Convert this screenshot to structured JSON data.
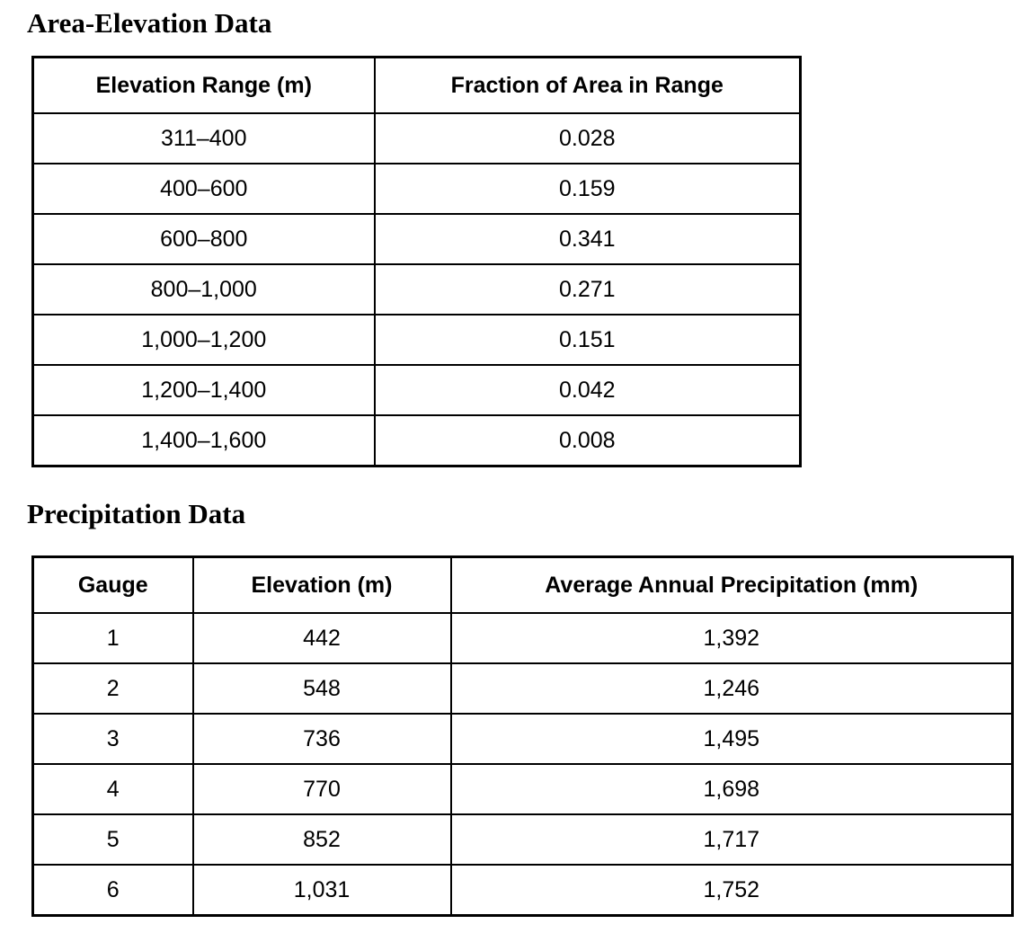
{
  "area_elevation": {
    "title": "Area-Elevation Data",
    "table": {
      "headers": [
        "Elevation Range (m)",
        "Fraction of Area in Range"
      ],
      "rows": [
        [
          "311–400",
          "0.028"
        ],
        [
          "400–600",
          "0.159"
        ],
        [
          "600–800",
          "0.341"
        ],
        [
          "800–1,000",
          "0.271"
        ],
        [
          "1,000–1,200",
          "0.151"
        ],
        [
          "1,200–1,400",
          "0.042"
        ],
        [
          "1,400–1,600",
          "0.008"
        ]
      ]
    }
  },
  "precipitation": {
    "title": "Precipitation Data",
    "table": {
      "headers": [
        "Gauge",
        "Elevation (m)",
        "Average Annual Precipitation (mm)"
      ],
      "rows": [
        [
          "1",
          "442",
          "1,392"
        ],
        [
          "2",
          "548",
          "1,246"
        ],
        [
          "3",
          "736",
          "1,495"
        ],
        [
          "4",
          "770",
          "1,698"
        ],
        [
          "5",
          "852",
          "1,717"
        ],
        [
          "6",
          "1,031",
          "1,752"
        ]
      ]
    }
  },
  "colors": {
    "background": "#ffffff",
    "text": "#000000",
    "border": "#000000"
  }
}
